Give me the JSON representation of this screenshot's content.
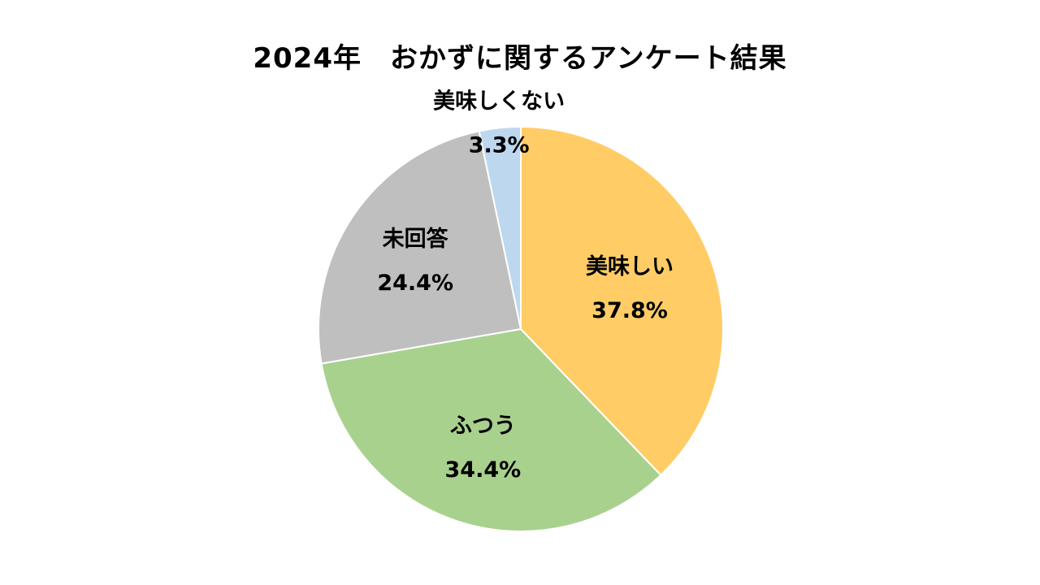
{
  "chart_data": {
    "type": "pie",
    "title": "2024年　おかずに関するアンケート結果",
    "slices": [
      {
        "label": "美味しい",
        "value": 37.8,
        "value_label": "37.8%",
        "color": "#FFCC66"
      },
      {
        "label": "ふつう",
        "value": 34.4,
        "value_label": "34.4%",
        "color": "#A9D18E"
      },
      {
        "label": "未回答",
        "value": 24.4,
        "value_label": "24.4%",
        "color": "#BFBFBF"
      },
      {
        "label": "美味しくない",
        "value": 3.3,
        "value_label": "3.3%",
        "color": "#BDD7EE"
      }
    ],
    "start_angle_deg": 0,
    "direction": "clockwise",
    "legend": "none",
    "slice_border_color": "#FFFFFF"
  }
}
